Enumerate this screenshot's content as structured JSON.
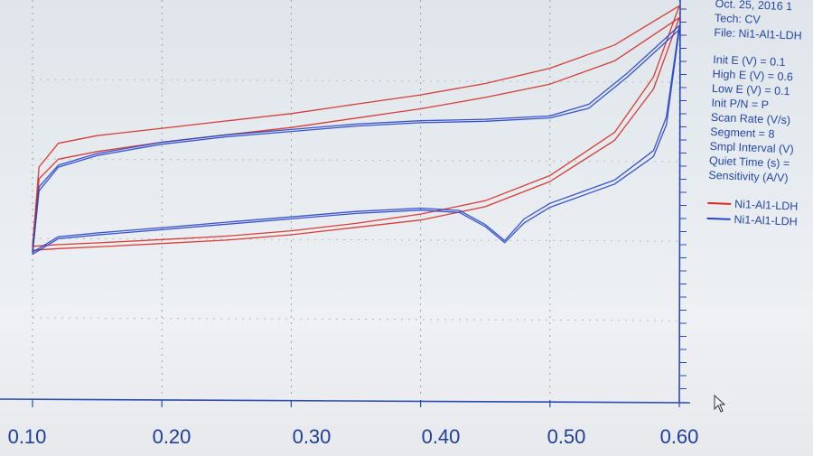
{
  "info": {
    "date": "Oct. 25, 2016",
    "date_suffix": "1",
    "tech": "Tech: CV",
    "file": "File: Ni1-Al1-LDH",
    "init_e": "Init E (V) = 0.1",
    "high_e": "High E (V) = 0.6",
    "low_e": "Low E (V) = 0.1",
    "init_pn": "Init P/N = P",
    "scan_rate": "Scan Rate (V/s)",
    "segment": "Segment = 8",
    "smpl_interval": "Smpl Interval (V)",
    "quiet_time": "Quiet Time (s) =",
    "sensitivity": "Sensitivity (A/V)"
  },
  "legend": [
    {
      "label": "Ni1-Al1-LDH",
      "color": "#d42a22"
    },
    {
      "label": "Ni1-Al1-LDH",
      "color": "#2343c8"
    }
  ],
  "colors": {
    "red_series": "#d42a22",
    "blue_series": "#2343c8",
    "axis": "#2b4bb0",
    "tick_text": "#1e3f9a"
  },
  "chart_data": {
    "type": "line",
    "title": "",
    "xlabel": "",
    "ylabel": "",
    "xlim": [
      0.1,
      0.6
    ],
    "ylim": [
      0,
      1
    ],
    "x_ticks": [
      "0.10",
      "0.20",
      "0.30",
      "0.40",
      "0.50",
      "0.60"
    ],
    "grid": true,
    "legend_position": "right",
    "series": [
      {
        "name": "Ni1-Al1-LDH",
        "color": "#d42a22",
        "loops": [
          {
            "anodic": [
              [
                0.1,
                0.38
              ],
              [
                0.105,
                0.58
              ],
              [
                0.12,
                0.64
              ],
              [
                0.15,
                0.66
              ],
              [
                0.2,
                0.68
              ],
              [
                0.25,
                0.7
              ],
              [
                0.3,
                0.72
              ],
              [
                0.35,
                0.745
              ],
              [
                0.4,
                0.77
              ],
              [
                0.45,
                0.8
              ],
              [
                0.5,
                0.84
              ],
              [
                0.55,
                0.9
              ],
              [
                0.6,
                1.0
              ]
            ],
            "cathodic": [
              [
                0.6,
                1.0
              ],
              [
                0.58,
                0.82
              ],
              [
                0.55,
                0.68
              ],
              [
                0.5,
                0.57
              ],
              [
                0.45,
                0.505
              ],
              [
                0.4,
                0.47
              ],
              [
                0.35,
                0.445
              ],
              [
                0.3,
                0.425
              ],
              [
                0.25,
                0.41
              ],
              [
                0.2,
                0.4
              ],
              [
                0.15,
                0.39
              ],
              [
                0.12,
                0.385
              ],
              [
                0.1,
                0.38
              ]
            ]
          },
          {
            "anodic": [
              [
                0.1,
                0.37
              ],
              [
                0.105,
                0.55
              ],
              [
                0.12,
                0.6
              ],
              [
                0.15,
                0.62
              ],
              [
                0.2,
                0.645
              ],
              [
                0.25,
                0.665
              ],
              [
                0.3,
                0.685
              ],
              [
                0.35,
                0.71
              ],
              [
                0.4,
                0.735
              ],
              [
                0.45,
                0.765
              ],
              [
                0.5,
                0.8
              ],
              [
                0.55,
                0.86
              ],
              [
                0.6,
                0.97
              ]
            ],
            "cathodic": [
              [
                0.6,
                0.97
              ],
              [
                0.58,
                0.79
              ],
              [
                0.55,
                0.66
              ],
              [
                0.5,
                0.555
              ],
              [
                0.45,
                0.49
              ],
              [
                0.4,
                0.455
              ],
              [
                0.35,
                0.435
              ],
              [
                0.3,
                0.415
              ],
              [
                0.25,
                0.4
              ],
              [
                0.2,
                0.39
              ],
              [
                0.15,
                0.38
              ],
              [
                0.12,
                0.375
              ],
              [
                0.1,
                0.37
              ]
            ]
          }
        ]
      },
      {
        "name": "Ni1-Al1-LDH",
        "color": "#2343c8",
        "loops": [
          {
            "anodic": [
              [
                0.1,
                0.36
              ],
              [
                0.105,
                0.52
              ],
              [
                0.12,
                0.58
              ],
              [
                0.15,
                0.61
              ],
              [
                0.2,
                0.64
              ],
              [
                0.25,
                0.66
              ],
              [
                0.3,
                0.675
              ],
              [
                0.35,
                0.69
              ],
              [
                0.4,
                0.7
              ],
              [
                0.45,
                0.705
              ],
              [
                0.5,
                0.715
              ],
              [
                0.53,
                0.74
              ],
              [
                0.56,
                0.82
              ],
              [
                0.58,
                0.88
              ],
              [
                0.6,
                0.94
              ]
            ],
            "cathodic": [
              [
                0.6,
                0.94
              ],
              [
                0.59,
                0.7
              ],
              [
                0.58,
                0.62
              ],
              [
                0.55,
                0.55
              ],
              [
                0.5,
                0.49
              ],
              [
                0.48,
                0.45
              ],
              [
                0.465,
                0.4
              ],
              [
                0.45,
                0.44
              ],
              [
                0.43,
                0.475
              ],
              [
                0.4,
                0.48
              ],
              [
                0.35,
                0.47
              ],
              [
                0.3,
                0.455
              ],
              [
                0.25,
                0.44
              ],
              [
                0.2,
                0.425
              ],
              [
                0.15,
                0.41
              ],
              [
                0.12,
                0.4
              ],
              [
                0.1,
                0.36
              ]
            ]
          },
          {
            "anodic": [
              [
                0.1,
                0.365
              ],
              [
                0.105,
                0.53
              ],
              [
                0.12,
                0.585
              ],
              [
                0.15,
                0.615
              ],
              [
                0.2,
                0.645
              ],
              [
                0.25,
                0.665
              ],
              [
                0.3,
                0.68
              ],
              [
                0.35,
                0.695
              ],
              [
                0.4,
                0.705
              ],
              [
                0.45,
                0.71
              ],
              [
                0.5,
                0.72
              ],
              [
                0.53,
                0.75
              ],
              [
                0.56,
                0.83
              ],
              [
                0.58,
                0.89
              ],
              [
                0.6,
                0.95
              ]
            ],
            "cathodic": [
              [
                0.6,
                0.95
              ],
              [
                0.59,
                0.72
              ],
              [
                0.58,
                0.635
              ],
              [
                0.55,
                0.56
              ],
              [
                0.5,
                0.5
              ],
              [
                0.48,
                0.46
              ],
              [
                0.465,
                0.405
              ],
              [
                0.45,
                0.445
              ],
              [
                0.43,
                0.48
              ],
              [
                0.4,
                0.485
              ],
              [
                0.35,
                0.475
              ],
              [
                0.3,
                0.46
              ],
              [
                0.25,
                0.445
              ],
              [
                0.2,
                0.43
              ],
              [
                0.15,
                0.415
              ],
              [
                0.12,
                0.405
              ],
              [
                0.1,
                0.365
              ]
            ]
          }
        ]
      }
    ]
  }
}
